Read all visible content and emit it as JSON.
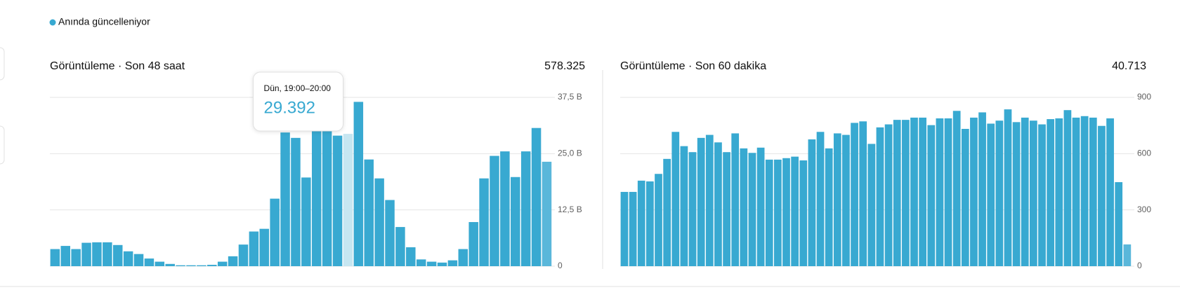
{
  "legend_text": "Anında güncelleniyor",
  "chart_data": [
    {
      "type": "bar",
      "title": "Görüntüleme · Son 48 saat",
      "total": "578.325",
      "color": "#38a9d1",
      "tooltip_title": "Dün, 19:00–20:00",
      "values": [
        3.8,
        4.5,
        3.8,
        5.2,
        5.3,
        5.3,
        4.7,
        3.3,
        2.7,
        1.7,
        1.0,
        0.5,
        0.2,
        0.2,
        0.2,
        0.3,
        1.0,
        2.2,
        4.8,
        7.7,
        8.3,
        15,
        29.7,
        28.5,
        19.7,
        31,
        31,
        29,
        29.392,
        36.5,
        23.7,
        19.5,
        14.7,
        8.7,
        4.2,
        1.5,
        1.0,
        0.8,
        1.3,
        3.8,
        9.8,
        19.5,
        24.5,
        25.5,
        19.8,
        25.5,
        30.7,
        23.2
      ],
      "value_labels": [
        null,
        null,
        null,
        null,
        null,
        null,
        null,
        null,
        null,
        null,
        null,
        null,
        null,
        null,
        null,
        null,
        null,
        null,
        null,
        null,
        null,
        null,
        null,
        null,
        null,
        null,
        null,
        null,
        "29.392",
        null,
        null,
        null,
        null,
        null,
        null,
        null,
        null,
        null,
        null,
        null,
        null,
        null,
        null,
        null,
        null,
        null,
        null,
        null
      ],
      "ylim": [
        0,
        37.5
      ],
      "yticks": [
        0,
        {
          "value": 12.5,
          "label": "12,5 B"
        },
        {
          "value": 25,
          "label": "25,0 B"
        },
        {
          "value": 37.5,
          "label": "37,5 B"
        }
      ],
      "grid": true
    },
    {
      "type": "bar",
      "title": "Görüntüleme · Son 60 dakika",
      "total": "40.713",
      "color": "#38a9d1",
      "values": [
        396,
        396,
        456,
        452,
        492,
        572,
        716,
        640,
        608,
        684,
        700,
        660,
        608,
        708,
        628,
        604,
        632,
        568,
        568,
        576,
        584,
        564,
        676,
        716,
        628,
        708,
        700,
        764,
        772,
        652,
        740,
        756,
        780,
        780,
        792,
        792,
        752,
        788,
        788,
        828,
        732,
        792,
        820,
        760,
        776,
        836,
        768,
        792,
        776,
        756,
        784,
        788,
        832,
        792,
        800,
        792,
        748,
        788,
        448,
        116
      ],
      "ylim": [
        0,
        900
      ],
      "yticks": [
        0,
        300,
        600,
        900
      ],
      "grid": true
    }
  ]
}
